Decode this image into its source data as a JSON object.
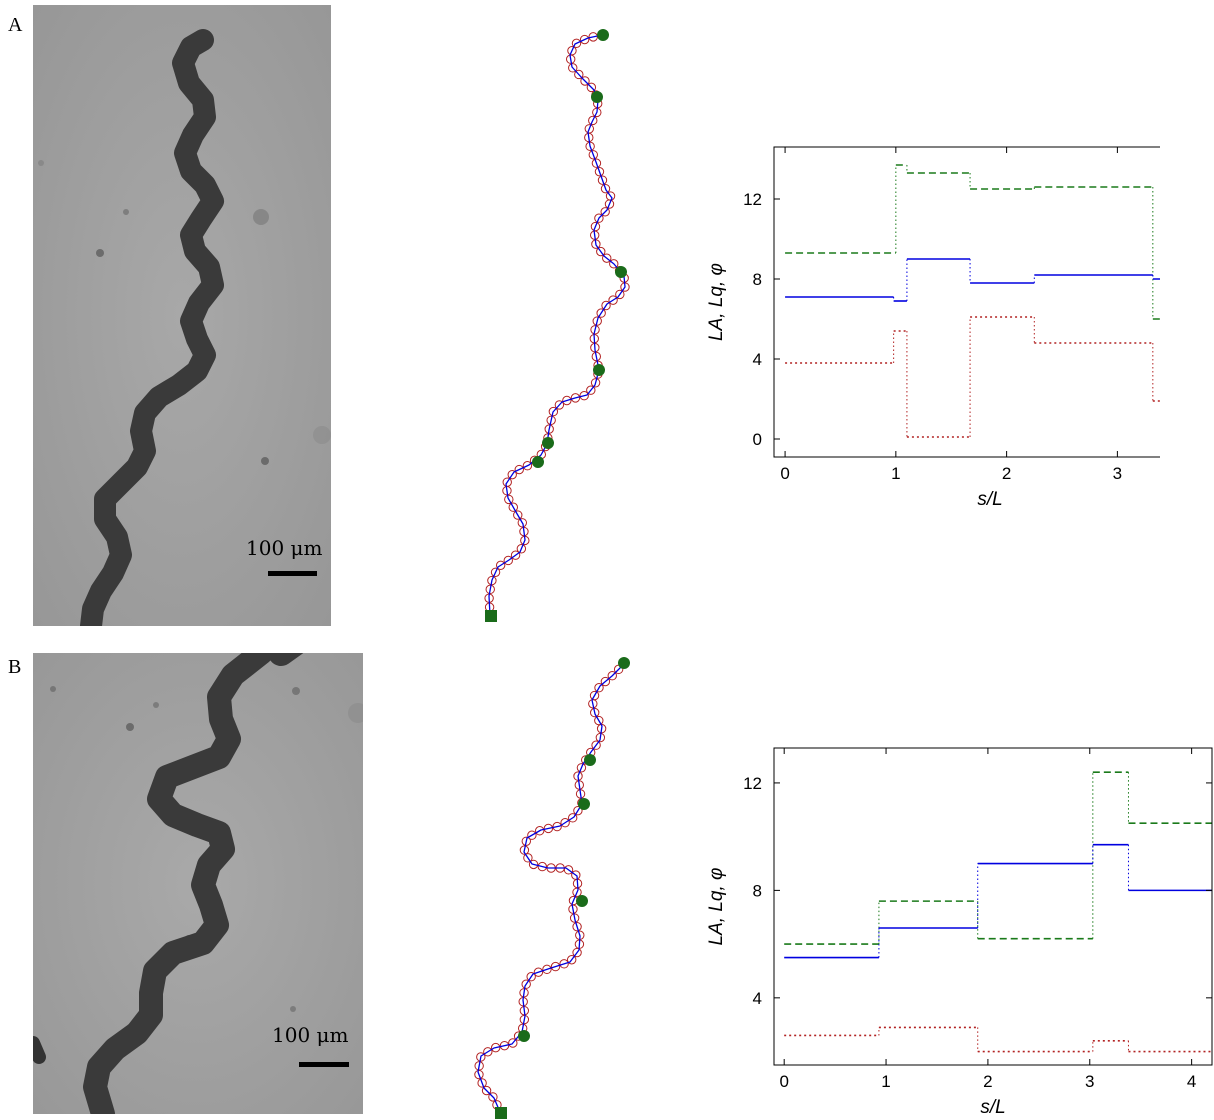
{
  "panels": [
    {
      "label": "A",
      "scale_bar_text": "100 μm",
      "trace": {
        "centerline": [
          [
            602,
            35
          ],
          [
            588,
            38
          ],
          [
            575,
            44
          ],
          [
            570,
            55
          ],
          [
            572,
            67
          ],
          [
            582,
            78
          ],
          [
            594,
            90
          ],
          [
            598,
            100
          ],
          [
            597,
            112
          ],
          [
            592,
            122
          ],
          [
            588,
            132
          ],
          [
            590,
            146
          ],
          [
            596,
            162
          ],
          [
            601,
            176
          ],
          [
            606,
            190
          ],
          [
            612,
            198
          ],
          [
            607,
            210
          ],
          [
            599,
            218
          ],
          [
            594,
            230
          ],
          [
            596,
            245
          ],
          [
            604,
            256
          ],
          [
            614,
            264
          ],
          [
            624,
            276
          ],
          [
            625,
            287
          ],
          [
            618,
            297
          ],
          [
            607,
            304
          ],
          [
            598,
            318
          ],
          [
            594,
            334
          ],
          [
            595,
            350
          ],
          [
            599,
            370
          ],
          [
            595,
            385
          ],
          [
            587,
            395
          ],
          [
            575,
            398
          ],
          [
            562,
            402
          ],
          [
            553,
            412
          ],
          [
            549,
            430
          ],
          [
            547,
            444
          ],
          [
            541,
            455
          ],
          [
            529,
            465
          ],
          [
            514,
            472
          ],
          [
            506,
            484
          ],
          [
            508,
            498
          ],
          [
            516,
            512
          ],
          [
            523,
            524
          ],
          [
            525,
            540
          ],
          [
            520,
            552
          ],
          [
            509,
            560
          ],
          [
            498,
            567
          ],
          [
            492,
            580
          ],
          [
            489,
            596
          ],
          [
            490,
            615
          ]
        ],
        "markers": [
          [
            603,
            35
          ],
          [
            597,
            97
          ],
          [
            621,
            272
          ],
          [
            599,
            370
          ],
          [
            548,
            443
          ],
          [
            538,
            462
          ]
        ],
        "start": [
          491,
          616
        ]
      },
      "chart": {
        "type": "line",
        "xlabel": "s/L",
        "ylabel": "LA, Lq, φ",
        "xlim": [
          -0.1,
          3.8
        ],
        "ylim": [
          -0.9,
          14.6
        ],
        "xticks": [
          0,
          1,
          2,
          3
        ],
        "yticks": [
          0,
          4,
          8,
          12
        ],
        "series": [
          {
            "color": "#1a7a1a",
            "dash": "7 4",
            "x": [
              0,
              1.0,
              1.0,
              1.1,
              1.1,
              1.67,
              1.67,
              2.25,
              2.25,
              3.32,
              3.32,
              3.8
            ],
            "y": [
              9.3,
              9.3,
              13.7,
              13.7,
              13.3,
              13.3,
              12.5,
              12.5,
              12.6,
              12.6,
              6.0,
              6.0
            ]
          },
          {
            "color": "#0000e0",
            "dash": "",
            "x": [
              0,
              0.98,
              0.98,
              1.1,
              1.1,
              1.67,
              1.67,
              2.25,
              2.25,
              3.32,
              3.32,
              3.8
            ],
            "y": [
              7.1,
              7.1,
              6.9,
              6.9,
              9.0,
              9.0,
              7.8,
              7.8,
              8.2,
              8.2,
              8.0,
              8.0
            ]
          },
          {
            "color": "#b22222",
            "dash": "2 3",
            "x": [
              0,
              0.98,
              0.98,
              1.1,
              1.1,
              1.67,
              1.67,
              2.25,
              2.25,
              3.32,
              3.32,
              3.8
            ],
            "y": [
              3.8,
              3.8,
              5.4,
              5.4,
              0.1,
              0.1,
              6.1,
              6.1,
              4.8,
              4.8,
              1.9,
              1.9
            ]
          }
        ]
      }
    },
    {
      "label": "B",
      "scale_bar_text": "100 μm",
      "trace": {
        "centerline": [
          [
            625,
            663
          ],
          [
            612,
            676
          ],
          [
            600,
            686
          ],
          [
            592,
            700
          ],
          [
            595,
            714
          ],
          [
            602,
            726
          ],
          [
            600,
            740
          ],
          [
            591,
            752
          ],
          [
            583,
            764
          ],
          [
            578,
            776
          ],
          [
            580,
            790
          ],
          [
            582,
            804
          ],
          [
            574,
            817
          ],
          [
            560,
            826
          ],
          [
            541,
            830
          ],
          [
            527,
            838
          ],
          [
            524,
            852
          ],
          [
            532,
            864
          ],
          [
            548,
            868
          ],
          [
            566,
            868
          ],
          [
            577,
            876
          ],
          [
            578,
            890
          ],
          [
            572,
            904
          ],
          [
            575,
            920
          ],
          [
            580,
            936
          ],
          [
            579,
            950
          ],
          [
            570,
            962
          ],
          [
            551,
            968
          ],
          [
            533,
            974
          ],
          [
            525,
            986
          ],
          [
            523,
            1000
          ],
          [
            525,
            1016
          ],
          [
            522,
            1032
          ],
          [
            512,
            1044
          ],
          [
            494,
            1048
          ],
          [
            481,
            1056
          ],
          [
            478,
            1072
          ],
          [
            484,
            1088
          ],
          [
            494,
            1098
          ],
          [
            500,
            1112
          ]
        ],
        "markers": [
          [
            624,
            663
          ],
          [
            590,
            760
          ],
          [
            584,
            804
          ],
          [
            582,
            901
          ],
          [
            524,
            1036
          ]
        ],
        "start": [
          501,
          1113
        ]
      },
      "chart": {
        "type": "line",
        "xlabel": "s/L",
        "ylabel": "LA, Lq, φ",
        "xlim": [
          -0.1,
          4.2
        ],
        "ylim": [
          1.5,
          13.3
        ],
        "xticks": [
          0,
          1,
          2,
          3,
          4
        ],
        "yticks": [
          4,
          8,
          12
        ],
        "series": [
          {
            "color": "#1a7a1a",
            "dash": "7 4",
            "x": [
              0,
              0.93,
              0.93,
              1.9,
              1.9,
              3.03,
              3.03,
              3.38,
              3.38,
              4.2
            ],
            "y": [
              6.0,
              6.0,
              7.6,
              7.6,
              6.2,
              6.2,
              12.4,
              12.4,
              10.5,
              10.5
            ]
          },
          {
            "color": "#0000e0",
            "dash": "",
            "x": [
              0,
              0.93,
              0.93,
              1.9,
              1.9,
              3.03,
              3.03,
              3.38,
              3.38,
              4.2
            ],
            "y": [
              5.5,
              5.5,
              6.6,
              6.6,
              9.0,
              9.0,
              9.7,
              9.7,
              8.0,
              8.0
            ]
          },
          {
            "color": "#b22222",
            "dash": "2 3",
            "x": [
              0,
              0.93,
              0.93,
              1.9,
              1.9,
              3.03,
              3.03,
              3.38,
              3.38,
              4.2
            ],
            "y": [
              2.6,
              2.6,
              2.9,
              2.9,
              2.0,
              2.0,
              2.4,
              2.4,
              2.0,
              2.0
            ]
          }
        ]
      }
    }
  ]
}
